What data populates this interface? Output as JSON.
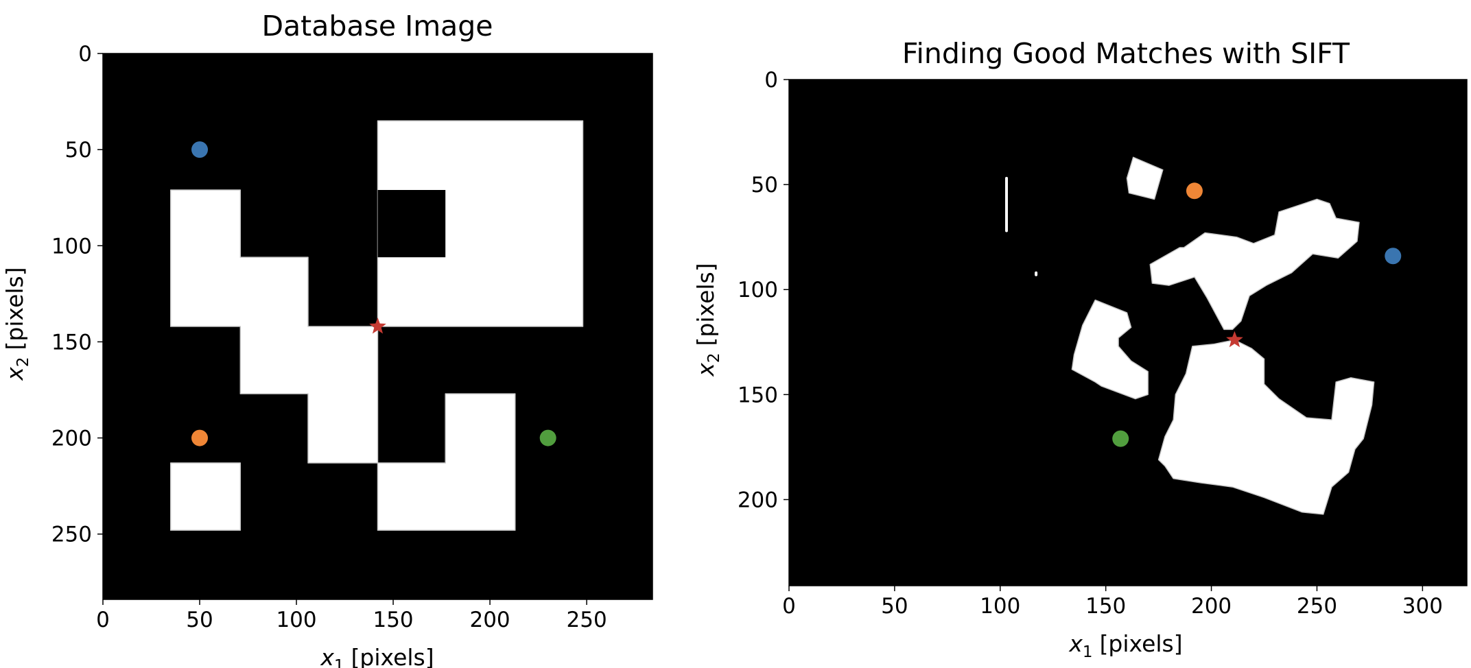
{
  "chart_data": [
    {
      "type": "scatter",
      "title": "Database Image",
      "xlabel": "x",
      "xlabel_sub": "1",
      "xlabel_unit": "[pixels]",
      "ylabel": "x",
      "ylabel_sub": "2",
      "ylabel_unit": "[pixels]",
      "xlim": [
        0,
        284
      ],
      "ylim": [
        284,
        0
      ],
      "x_ticks": [
        0,
        50,
        100,
        150,
        200,
        250
      ],
      "y_ticks": [
        0,
        50,
        100,
        150,
        200,
        250
      ],
      "background": "#000000",
      "image_color": "#ffffff",
      "white_regions": [
        [
          [
            35,
            71
          ],
          [
            71,
            71
          ],
          [
            71,
            106
          ],
          [
            106,
            106
          ],
          [
            106,
            142
          ],
          [
            142,
            142
          ],
          [
            142,
            35
          ],
          [
            248,
            35
          ],
          [
            248,
            142
          ],
          [
            142,
            142
          ],
          [
            142,
            213
          ],
          [
            106,
            213
          ],
          [
            106,
            177
          ],
          [
            71,
            177
          ],
          [
            71,
            142
          ],
          [
            35,
            142
          ]
        ],
        [
          [
            35,
            213
          ],
          [
            71,
            213
          ],
          [
            71,
            248
          ],
          [
            35,
            248
          ]
        ],
        [
          [
            142,
            213
          ],
          [
            177,
            213
          ],
          [
            177,
            177
          ],
          [
            213,
            177
          ],
          [
            213,
            248
          ],
          [
            142,
            248
          ]
        ]
      ],
      "black_holes": [
        [
          [
            142,
            71
          ],
          [
            177,
            71
          ],
          [
            177,
            106
          ],
          [
            142,
            106
          ]
        ]
      ],
      "points": [
        {
          "x": 50,
          "y": 50,
          "color": "#3a75b0",
          "marker": "circle"
        },
        {
          "x": 50,
          "y": 200,
          "color": "#ef8636",
          "marker": "circle"
        },
        {
          "x": 230,
          "y": 200,
          "color": "#519e3e",
          "marker": "circle"
        },
        {
          "x": 142,
          "y": 142,
          "color": "#c53a32",
          "marker": "star"
        }
      ]
    },
    {
      "type": "scatter",
      "title": "Finding Good Matches with SIFT",
      "xlabel": "x",
      "xlabel_sub": "1",
      "xlabel_unit": "[pixels]",
      "ylabel": "x",
      "ylabel_sub": "2",
      "ylabel_unit": "[pixels]",
      "xlim": [
        0,
        321
      ],
      "ylim": [
        241,
        0
      ],
      "x_ticks": [
        0,
        50,
        100,
        150,
        200,
        250,
        300
      ],
      "y_ticks": [
        0,
        50,
        100,
        150,
        200
      ],
      "background": "#000000",
      "image_color": "#ffffff",
      "white_regions": [
        [
          [
            163,
            37
          ],
          [
            177,
            43
          ],
          [
            173,
            57
          ],
          [
            161,
            54
          ],
          [
            160,
            47
          ]
        ],
        [
          [
            232,
            63
          ],
          [
            250,
            57
          ],
          [
            256,
            59
          ],
          [
            259,
            66
          ],
          [
            270,
            68
          ],
          [
            269,
            77
          ],
          [
            260,
            85
          ],
          [
            248,
            83
          ],
          [
            238,
            92
          ],
          [
            226,
            98
          ],
          [
            218,
            103
          ],
          [
            214,
            115
          ],
          [
            210,
            119
          ],
          [
            206,
            119
          ],
          [
            198,
            104
          ],
          [
            192,
            94
          ],
          [
            180,
            98
          ],
          [
            172,
            97
          ],
          [
            171,
            88
          ],
          [
            185,
            80
          ],
          [
            187,
            80
          ],
          [
            197,
            73
          ],
          [
            212,
            75
          ],
          [
            220,
            78
          ],
          [
            230,
            74
          ]
        ],
        [
          [
            145,
            105
          ],
          [
            160,
            111
          ],
          [
            162,
            118
          ],
          [
            156,
            123
          ],
          [
            156,
            127
          ],
          [
            162,
            134
          ],
          [
            170,
            139
          ],
          [
            170,
            150
          ],
          [
            164,
            152
          ],
          [
            148,
            146
          ],
          [
            145,
            144
          ],
          [
            134,
            138
          ],
          [
            135,
            131
          ],
          [
            139,
            117
          ]
        ],
        [
          [
            211,
            124
          ],
          [
            219,
            128
          ],
          [
            225,
            133
          ],
          [
            225,
            145
          ],
          [
            232,
            152
          ],
          [
            245,
            161
          ],
          [
            257,
            162
          ],
          [
            258,
            153
          ],
          [
            259,
            144
          ],
          [
            266,
            142
          ],
          [
            277,
            144
          ],
          [
            276,
            155
          ],
          [
            272,
            171
          ],
          [
            268,
            176
          ],
          [
            265,
            187
          ],
          [
            257,
            194
          ],
          [
            253,
            207
          ],
          [
            243,
            206
          ],
          [
            225,
            199
          ],
          [
            210,
            194
          ],
          [
            195,
            192
          ],
          [
            182,
            190
          ],
          [
            178,
            184
          ],
          [
            175,
            181
          ],
          [
            178,
            170
          ],
          [
            182,
            162
          ],
          [
            183,
            150
          ],
          [
            188,
            140
          ],
          [
            191,
            127
          ],
          [
            201,
            126
          ]
        ]
      ],
      "thin_strokes": [
        [
          [
            103,
            47
          ],
          [
            103,
            72
          ]
        ],
        [
          [
            117,
            92
          ],
          [
            117,
            93
          ]
        ]
      ],
      "points": [
        {
          "x": 286,
          "y": 84,
          "color": "#3a75b0",
          "marker": "circle"
        },
        {
          "x": 192,
          "y": 53,
          "color": "#ef8636",
          "marker": "circle"
        },
        {
          "x": 157,
          "y": 171,
          "color": "#519e3e",
          "marker": "circle"
        },
        {
          "x": 211,
          "y": 124,
          "color": "#c53a32",
          "marker": "star"
        }
      ]
    }
  ]
}
